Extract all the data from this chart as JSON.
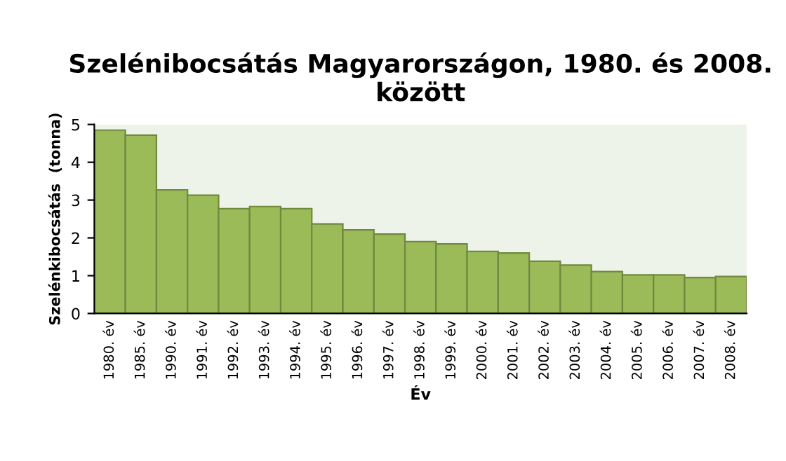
{
  "chart_data": {
    "type": "bar",
    "title": "Szelénibocsátás Magyarországon, 1980. és 2008. között",
    "xlabel": "Év",
    "ylabel": "Szelénkibocsátás  (tonna)",
    "categories": [
      "1980. év",
      "1985. év",
      "1990. év",
      "1991. év",
      "1992. év",
      "1993. év",
      "1994. év",
      "1995. év",
      "1996. év",
      "1997. év",
      "1998. év",
      "1999. év",
      "2000. év",
      "2001. év",
      "2002. év",
      "2003. év",
      "2004. év",
      "2005. év",
      "2006. év",
      "2007. év",
      "2008. év"
    ],
    "values": [
      4.85,
      4.72,
      3.27,
      3.13,
      2.77,
      2.83,
      2.77,
      2.37,
      2.21,
      2.1,
      1.9,
      1.84,
      1.64,
      1.6,
      1.38,
      1.28,
      1.11,
      1.02,
      1.02,
      0.95,
      0.98
    ],
    "color": "#9bbb59",
    "ylim": [
      0,
      5
    ],
    "yticks": [
      0,
      1,
      2,
      3,
      4,
      5
    ],
    "grid": false
  }
}
